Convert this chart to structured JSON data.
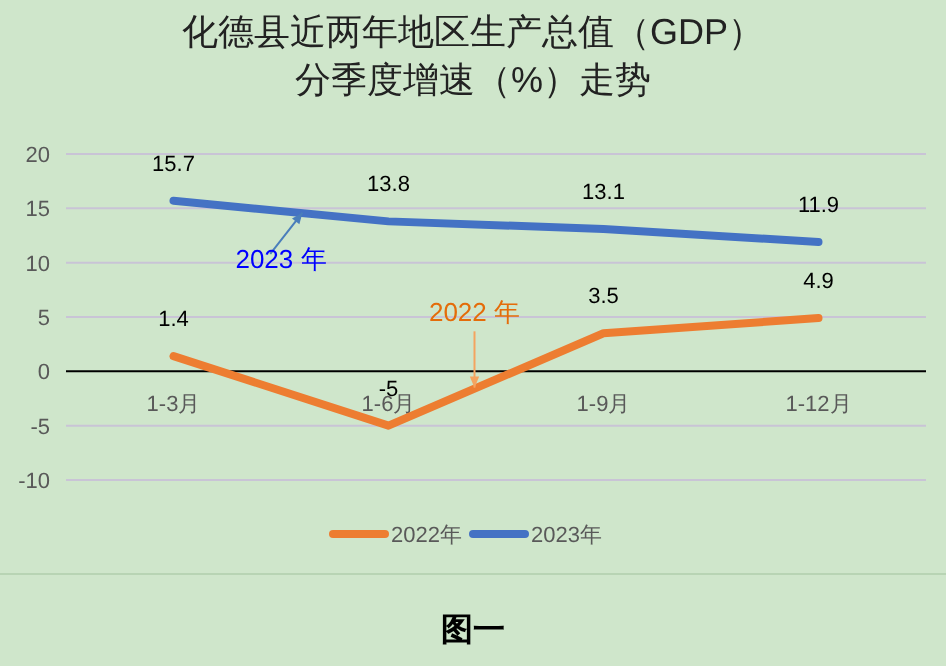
{
  "chart_data": {
    "type": "line",
    "title": "化德县近两年地区生产总值（GDP）",
    "subtitle": "分季度增速（%）走势",
    "categories": [
      "1-3月",
      "1-6月",
      "1-9月",
      "1-12月"
    ],
    "series": [
      {
        "name": "2022年",
        "color": "#ed7d31",
        "values": [
          1.4,
          -5,
          3.5,
          4.9
        ]
      },
      {
        "name": "2023年",
        "color": "#4472c4",
        "values": [
          15.7,
          13.8,
          13.1,
          11.9
        ]
      }
    ],
    "ylim": [
      -10,
      20
    ],
    "yticks": [
      -10,
      -5,
      0,
      5,
      10,
      15,
      20
    ],
    "grid": "y",
    "legend": "bottom",
    "marker": "none",
    "data_labels": true,
    "annotations": [
      {
        "text": "2022 年",
        "y": -1.5
      },
      {
        "text": "2023 年",
        "y": 14.6
      },
      "图一"
    ]
  }
}
